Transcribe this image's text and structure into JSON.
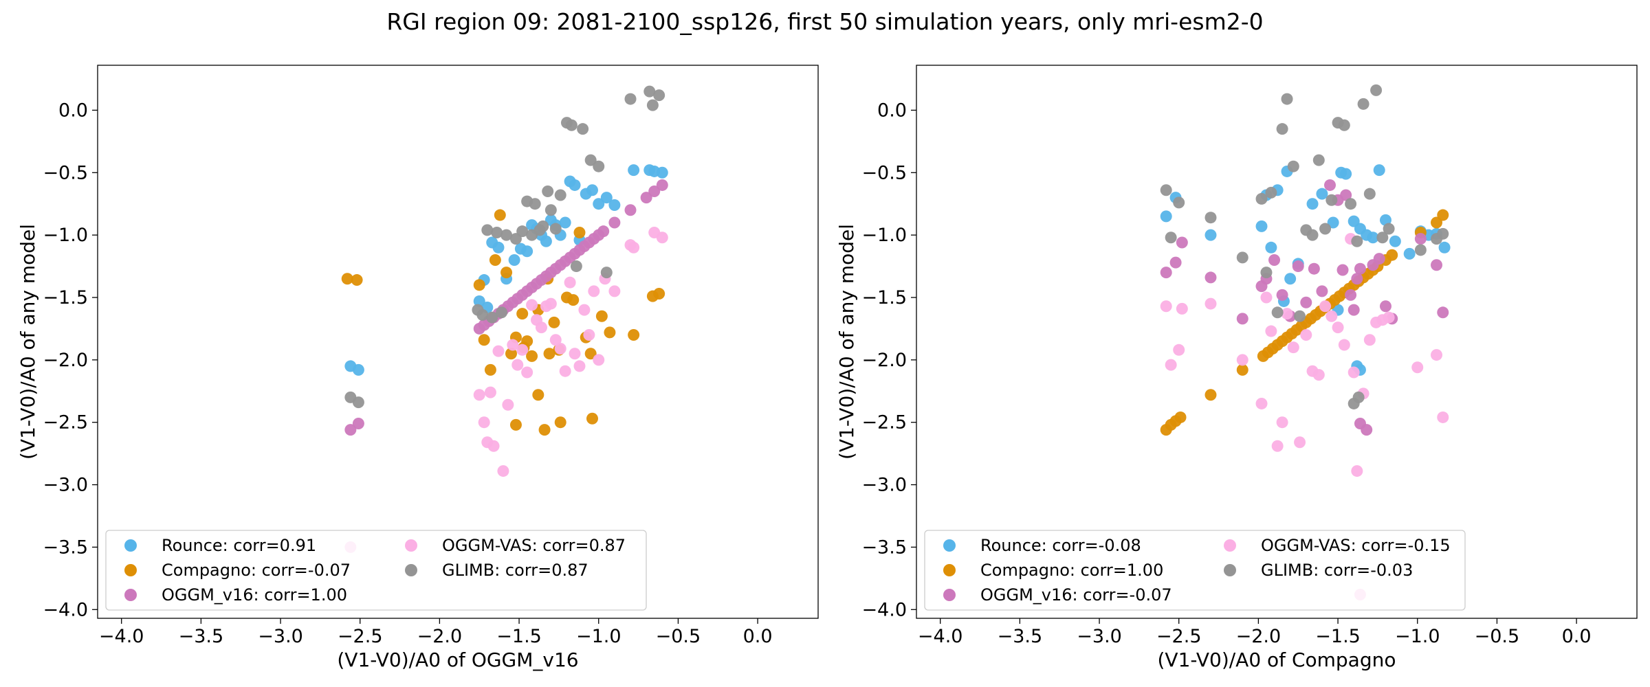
{
  "title": "RGI region 09: 2081-2100_ssp126, first 50 simulation years, only mri-esm2-0",
  "colors": {
    "Rounce": "#56b4e9",
    "Compagno": "#de8f05",
    "OGGM_v16": "#cc78bc",
    "OGGM-VAS": "#fbafe4",
    "GLIMB": "#949494"
  },
  "chart_data": [
    {
      "type": "scatter",
      "xlabel": "(V1-V0)/A0 of OGGM_v16",
      "ylabel": "(V1-V0)/A0 of any model",
      "xlim": [
        -4.15,
        0.38
      ],
      "ylim": [
        -4.07,
        0.36
      ],
      "xticks": [
        -4.0,
        -3.5,
        -3.0,
        -2.5,
        -2.0,
        -1.5,
        -1.0,
        -0.5,
        0.0
      ],
      "yticks": [
        0.0,
        -0.5,
        -1.0,
        -1.5,
        -2.0,
        -2.5,
        -3.0,
        -3.5,
        -4.0
      ],
      "legend": {
        "placement": "lower left",
        "ncol": 2
      },
      "series": [
        {
          "name": "Rounce",
          "legend": "Rounce: corr=0.91",
          "x": [
            -2.56,
            -2.51,
            -1.75,
            -1.72,
            -1.7,
            -1.67,
            -1.63,
            -1.58,
            -1.53,
            -1.49,
            -1.45,
            -1.42,
            -1.39,
            -1.36,
            -1.33,
            -1.3,
            -1.27,
            -1.24,
            -1.21,
            -1.18,
            -1.15,
            -1.12,
            -1.08,
            -1.04,
            -1.0,
            -0.95,
            -0.9,
            -0.78,
            -0.68,
            -0.65,
            -0.6
          ],
          "y": [
            -2.05,
            -2.08,
            -1.53,
            -1.36,
            -1.58,
            -1.06,
            -1.1,
            -1.35,
            -1.2,
            -1.11,
            -1.13,
            -0.92,
            -0.95,
            -1.0,
            -1.05,
            -0.88,
            -0.92,
            -1.0,
            -0.9,
            -0.57,
            -0.6,
            -1.04,
            -0.67,
            -0.64,
            -0.75,
            -0.7,
            -0.76,
            -0.48,
            -0.48,
            -0.49,
            -0.5
          ]
        },
        {
          "name": "Compagno",
          "legend": "Compagno: corr=-0.07",
          "x": [
            -2.58,
            -2.52,
            -1.75,
            -1.72,
            -1.68,
            -1.65,
            -1.62,
            -1.58,
            -1.55,
            -1.52,
            -1.48,
            -1.45,
            -1.42,
            -1.38,
            -1.34,
            -1.31,
            -1.28,
            -1.24,
            -1.2,
            -1.16,
            -1.12,
            -1.08,
            -1.04,
            -0.98,
            -0.93,
            -0.78,
            -0.66,
            -0.62,
            -1.52,
            -1.25,
            -1.05,
            -1.47,
            -1.32,
            -1.38
          ],
          "y": [
            -1.35,
            -1.36,
            -1.4,
            -1.84,
            -2.08,
            -1.2,
            -0.84,
            -1.3,
            -1.95,
            -2.52,
            -1.63,
            -1.85,
            -1.97,
            -2.28,
            -2.56,
            -1.95,
            -1.7,
            -2.5,
            -1.5,
            -1.52,
            -0.98,
            -1.82,
            -2.47,
            -1.65,
            -1.78,
            -1.8,
            -1.49,
            -1.47,
            -1.82,
            -1.92,
            -1.95,
            -1.9,
            -1.35,
            -1.6
          ]
        },
        {
          "name": "OGGM_v16",
          "legend": "OGGM_v16: corr=1.00",
          "x": [
            -2.56,
            -2.51,
            -1.75,
            -1.72,
            -1.69,
            -1.66,
            -1.63,
            -1.6,
            -1.57,
            -1.54,
            -1.51,
            -1.48,
            -1.45,
            -1.42,
            -1.39,
            -1.36,
            -1.33,
            -1.3,
            -1.27,
            -1.24,
            -1.21,
            -1.18,
            -1.15,
            -1.12,
            -1.09,
            -1.06,
            -1.03,
            -1.0,
            -0.97,
            -0.9,
            -0.8,
            -0.7,
            -0.65,
            -0.6
          ],
          "y": [
            -2.56,
            -2.51,
            -1.75,
            -1.72,
            -1.69,
            -1.66,
            -1.63,
            -1.6,
            -1.57,
            -1.54,
            -1.51,
            -1.48,
            -1.45,
            -1.42,
            -1.39,
            -1.36,
            -1.33,
            -1.3,
            -1.27,
            -1.24,
            -1.21,
            -1.18,
            -1.15,
            -1.12,
            -1.09,
            -1.06,
            -1.03,
            -1.0,
            -0.97,
            -0.9,
            -0.8,
            -0.7,
            -0.65,
            -0.6
          ]
        },
        {
          "name": "OGGM-VAS",
          "legend": "OGGM-VAS: corr=0.87",
          "x": [
            -2.56,
            -1.75,
            -1.72,
            -1.7,
            -1.68,
            -1.66,
            -1.63,
            -1.6,
            -1.57,
            -1.54,
            -1.51,
            -1.48,
            -1.45,
            -1.42,
            -1.39,
            -1.36,
            -1.33,
            -1.3,
            -1.27,
            -1.24,
            -1.21,
            -1.18,
            -1.15,
            -1.12,
            -1.09,
            -1.06,
            -1.03,
            -1.0,
            -0.96,
            -0.9,
            -0.8,
            -0.78,
            -0.65,
            -0.6
          ],
          "y": [
            -3.5,
            -2.28,
            -2.5,
            -2.66,
            -2.26,
            -2.69,
            -1.93,
            -2.89,
            -2.36,
            -1.88,
            -2.04,
            -1.92,
            -2.1,
            -1.56,
            -1.68,
            -1.74,
            -1.57,
            -1.55,
            -1.84,
            -1.91,
            -2.09,
            -1.38,
            -1.95,
            -2.05,
            -1.6,
            -1.8,
            -1.45,
            -2.0,
            -1.35,
            -1.45,
            -1.08,
            -1.1,
            -0.98,
            -1.02
          ]
        },
        {
          "name": "GLIMB",
          "legend": "GLIMB: corr=0.87",
          "x": [
            -2.56,
            -2.51,
            -1.76,
            -1.73,
            -1.7,
            -1.67,
            -1.64,
            -1.61,
            -1.58,
            -1.52,
            -1.48,
            -1.45,
            -1.42,
            -1.4,
            -1.37,
            -1.35,
            -1.32,
            -1.3,
            -1.27,
            -1.24,
            -1.2,
            -1.17,
            -1.14,
            -1.1,
            -1.05,
            -1.0,
            -0.95,
            -0.8,
            -0.68,
            -0.66,
            -0.62
          ],
          "y": [
            -2.3,
            -2.34,
            -1.6,
            -1.64,
            -0.96,
            -1.66,
            -0.98,
            -1.62,
            -1.0,
            -1.03,
            -0.97,
            -0.73,
            -1.0,
            -0.75,
            -0.96,
            -0.93,
            -0.65,
            -0.8,
            -0.95,
            -0.68,
            -0.1,
            -0.12,
            -1.25,
            -0.15,
            -0.4,
            -0.45,
            -1.3,
            0.09,
            0.15,
            0.04,
            0.12
          ]
        }
      ]
    },
    {
      "type": "scatter",
      "xlabel": "(V1-V0)/A0 of Compagno",
      "ylabel": "(V1-V0)/A0 of any model",
      "xlim": [
        -4.15,
        0.38
      ],
      "ylim": [
        -4.07,
        0.36
      ],
      "xticks": [
        -4.0,
        -3.5,
        -3.0,
        -2.5,
        -2.0,
        -1.5,
        -1.0,
        -0.5,
        0.0
      ],
      "yticks": [
        0.0,
        -0.5,
        -1.0,
        -1.5,
        -2.0,
        -2.5,
        -3.0,
        -3.5,
        -4.0
      ],
      "legend": {
        "placement": "lower left",
        "ncol": 2
      },
      "series": [
        {
          "name": "Rounce",
          "legend": "Rounce: corr=-0.08",
          "x": [
            -2.58,
            -2.52,
            -2.3,
            -1.98,
            -1.95,
            -1.92,
            -1.88,
            -1.84,
            -1.82,
            -1.8,
            -1.75,
            -1.66,
            -1.6,
            -1.53,
            -1.48,
            -1.45,
            -1.4,
            -1.36,
            -1.32,
            -1.28,
            -1.24,
            -1.2,
            -1.14,
            -1.05,
            -0.98,
            -0.93,
            -0.88,
            -0.83,
            -1.38,
            -1.36,
            -1.5
          ],
          "y": [
            -0.85,
            -0.7,
            -1.0,
            -0.93,
            -0.68,
            -1.1,
            -0.64,
            -1.53,
            -0.49,
            -1.35,
            -1.23,
            -0.75,
            -0.67,
            -0.9,
            -0.5,
            -0.51,
            -0.89,
            -0.95,
            -1.0,
            -1.02,
            -0.48,
            -0.88,
            -1.05,
            -1.15,
            -0.97,
            -1.0,
            -0.99,
            -1.1,
            -2.05,
            -2.08,
            -1.6
          ]
        },
        {
          "name": "Compagno",
          "legend": "Compagno: corr=1.00",
          "x": [
            -2.58,
            -2.55,
            -2.52,
            -2.49,
            -2.3,
            -2.1,
            -1.97,
            -1.94,
            -1.91,
            -1.88,
            -1.85,
            -1.82,
            -1.79,
            -1.76,
            -1.73,
            -1.7,
            -1.67,
            -1.64,
            -1.61,
            -1.58,
            -1.55,
            -1.52,
            -1.49,
            -1.46,
            -1.43,
            -1.4,
            -1.37,
            -1.34,
            -1.31,
            -1.28,
            -1.25,
            -1.2,
            -1.16,
            -0.98,
            -0.88,
            -0.84
          ],
          "y": [
            -2.56,
            -2.52,
            -2.49,
            -2.46,
            -2.28,
            -2.08,
            -1.97,
            -1.94,
            -1.91,
            -1.88,
            -1.85,
            -1.82,
            -1.79,
            -1.76,
            -1.73,
            -1.7,
            -1.67,
            -1.64,
            -1.61,
            -1.58,
            -1.55,
            -1.52,
            -1.49,
            -1.46,
            -1.43,
            -1.4,
            -1.37,
            -1.34,
            -1.31,
            -1.28,
            -1.25,
            -1.2,
            -1.16,
            -0.98,
            -0.9,
            -0.84
          ]
        },
        {
          "name": "OGGM_v16",
          "legend": "OGGM_v16: corr=-0.07",
          "x": [
            -2.58,
            -2.52,
            -2.48,
            -2.3,
            -2.1,
            -1.98,
            -1.95,
            -1.9,
            -1.85,
            -1.8,
            -1.75,
            -1.7,
            -1.65,
            -1.6,
            -1.55,
            -1.5,
            -1.45,
            -1.4,
            -1.36,
            -1.32,
            -1.28,
            -1.24,
            -1.2,
            -1.16,
            -0.98,
            -0.88,
            -0.84,
            -1.36,
            -1.38,
            -1.42,
            -1.47
          ],
          "y": [
            -1.3,
            -1.22,
            -1.06,
            -1.34,
            -1.67,
            -1.41,
            -1.35,
            -1.2,
            -1.48,
            -1.65,
            -1.25,
            -1.54,
            -1.27,
            -1.45,
            -0.6,
            -0.72,
            -0.68,
            -1.6,
            -2.51,
            -2.56,
            -1.24,
            -1.19,
            -1.57,
            -1.67,
            -1.03,
            -1.24,
            -1.62,
            -1.27,
            -1.35,
            -1.48,
            -1.28
          ]
        },
        {
          "name": "OGGM-VAS",
          "legend": "OGGM-VAS: corr=-0.15",
          "x": [
            -2.58,
            -2.55,
            -2.5,
            -2.48,
            -2.3,
            -2.1,
            -1.98,
            -1.95,
            -1.92,
            -1.88,
            -1.85,
            -1.82,
            -1.78,
            -1.74,
            -1.7,
            -1.66,
            -1.62,
            -1.58,
            -1.54,
            -1.5,
            -1.46,
            -1.42,
            -1.38,
            -1.34,
            -1.3,
            -1.26,
            -1.22,
            -1.18,
            -1.0,
            -0.88,
            -0.84,
            -1.36,
            -1.4
          ],
          "y": [
            -1.57,
            -2.04,
            -1.92,
            -1.59,
            -1.55,
            -2.0,
            -2.35,
            -1.5,
            -1.77,
            -2.69,
            -2.5,
            -1.63,
            -1.9,
            -2.66,
            -1.8,
            -2.09,
            -2.12,
            -1.57,
            -1.65,
            -1.74,
            -1.88,
            -1.03,
            -2.89,
            -2.27,
            -1.84,
            -1.7,
            -1.68,
            -1.66,
            -2.06,
            -1.96,
            -2.46,
            -3.88,
            -2.1
          ]
        },
        {
          "name": "GLIMB",
          "legend": "GLIMB: corr=-0.03",
          "x": [
            -2.58,
            -2.55,
            -2.5,
            -2.3,
            -2.1,
            -1.98,
            -1.95,
            -1.92,
            -1.88,
            -1.85,
            -1.82,
            -1.78,
            -1.74,
            -1.7,
            -1.66,
            -1.62,
            -1.58,
            -1.54,
            -1.5,
            -1.46,
            -1.42,
            -1.38,
            -1.34,
            -1.3,
            -1.26,
            -1.22,
            -1.18,
            -0.98,
            -0.88,
            -0.84,
            -1.37,
            -1.4
          ],
          "y": [
            -0.64,
            -1.02,
            -0.74,
            -0.86,
            -1.18,
            -0.71,
            -1.3,
            -0.66,
            -1.62,
            -0.15,
            0.09,
            -0.45,
            -1.65,
            -0.96,
            -1.0,
            -0.4,
            -0.95,
            -0.72,
            -0.1,
            -0.12,
            -0.75,
            -1.05,
            0.05,
            -0.67,
            0.16,
            -1.02,
            -0.95,
            -1.12,
            -1.03,
            -0.99,
            -2.3,
            -2.35
          ]
        }
      ]
    }
  ]
}
